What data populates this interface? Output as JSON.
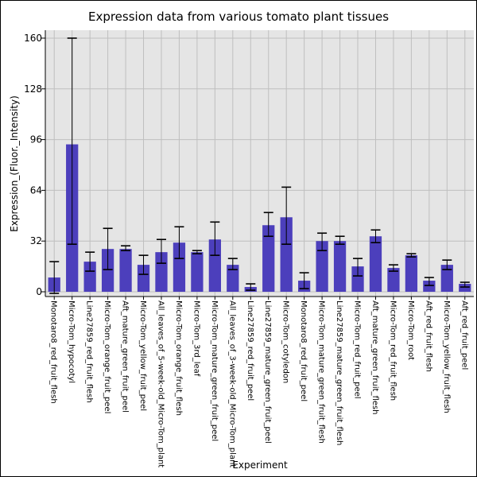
{
  "chart_data": {
    "type": "bar",
    "title": "Expression data from various tomato plant tissues",
    "xlabel": "Experiment",
    "ylabel": "Expression_(Fluor._Intensity)",
    "ylim": [
      -3,
      165
    ],
    "yticks": [
      0,
      32,
      64,
      96,
      128,
      160
    ],
    "grid": true,
    "bar_color": "#4c3fbc",
    "plot_background": "#e5e5e5",
    "grid_color": "#bfbfbf",
    "categories": [
      "Monotaro8_red_fruit_flesh",
      "Micro-Tom_hypocotyl",
      "Line27859_red_fruit_flesh",
      "Micro-Tom_orange_fruit_peel",
      "Aft_mature_green_fruit_peel",
      "Micro-Tom_yellow_fruit_peel",
      "All_leaves_of_5-week-old_Micro-Tom_plant",
      "Micro-Tom_orange_fruit_flesh",
      "Micro-Tom_3rd_leaf",
      "Micro-Tom_mature_green_fruit_peel",
      "All_leaves_of_3-week-old_Micro-Tom_plant",
      "Line27859_red_fruit_peel",
      "Line27859_mature_green_fruit_peel",
      "Micro-Tom_cotyledon",
      "Monotaro8_red_fruit_peel",
      "Micro-Tom_mature_green_fruit_flesh",
      "Line27859_mature_green_fruit_flesh",
      "Micro-Tom_red_fruit_peel",
      "Aft_mature_green_fruit_flesh",
      "Micro-Tom_red_fruit_flesh",
      "Micro-Tom_root",
      "Aft_red_fruit_flesh",
      "Micro-Tom_yellow_fruit_flesh",
      "Aft_red_fruit_peel"
    ],
    "values": [
      9,
      93,
      19,
      27,
      27,
      17,
      25,
      31,
      25,
      33,
      17,
      3,
      42,
      47,
      7,
      32,
      32,
      16,
      35,
      15,
      23,
      7,
      17,
      5
    ],
    "err_low": [
      -1,
      30,
      13,
      14,
      26,
      11,
      18,
      21,
      24,
      23,
      14,
      1,
      35,
      30,
      2,
      26,
      30,
      10,
      31,
      13,
      22,
      4,
      14,
      3
    ],
    "err_high": [
      19,
      160,
      25,
      40,
      29,
      23,
      33,
      41,
      26,
      44,
      21,
      5,
      50,
      66,
      12,
      37,
      35,
      21,
      39,
      17,
      24,
      9,
      20,
      6
    ]
  }
}
